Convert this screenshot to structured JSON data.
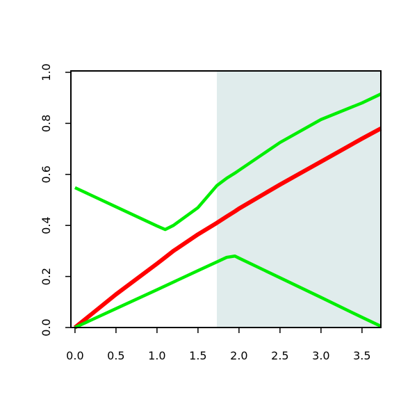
{
  "chart_data": {
    "type": "line",
    "x": [
      0,
      0.5,
      1.0,
      1.1,
      1.2,
      1.5,
      1.73,
      1.85,
      1.95,
      2.0,
      2.5,
      3.0,
      3.5,
      3.73
    ],
    "series": [
      {
        "color": "#ff0000",
        "values": [
          0.0,
          0.13,
          0.25,
          0.275,
          0.3,
          0.365,
          0.41,
          0.435,
          0.455,
          0.466,
          0.56,
          0.65,
          0.74,
          0.78
        ]
      },
      {
        "color": "#00ee00",
        "values": [
          0.548,
          0.473,
          0.398,
          0.384,
          0.4,
          0.47,
          0.556,
          0.585,
          0.605,
          0.616,
          0.725,
          0.815,
          0.88,
          0.915
        ]
      },
      {
        "color": "#00ee00",
        "values": [
          0.0,
          0.074,
          0.148,
          0.163,
          0.178,
          0.223,
          0.257,
          0.275,
          0.28,
          0.272,
          0.195,
          0.118,
          0.04,
          0.005
        ]
      }
    ],
    "shaded_region": {
      "x": [
        1.73,
        3.73
      ],
      "color": "#e0ecec"
    },
    "xlim": [
      -0.05,
      3.73
    ],
    "ylim": [
      0,
      1.0
    ],
    "xticks": [
      {
        "value": 0,
        "label": "0.0"
      },
      0.5,
      {
        "value": 1,
        "label": "1.0"
      },
      1.5,
      {
        "value": 2,
        "label": "2.0"
      },
      2.5,
      {
        "value": 3,
        "label": "3.0"
      },
      3.5
    ],
    "yticks": [
      {
        "value": 0,
        "label": "0.0"
      },
      0.2,
      0.4,
      0.6,
      0.8,
      {
        "value": 1,
        "label": "1.0"
      }
    ]
  }
}
